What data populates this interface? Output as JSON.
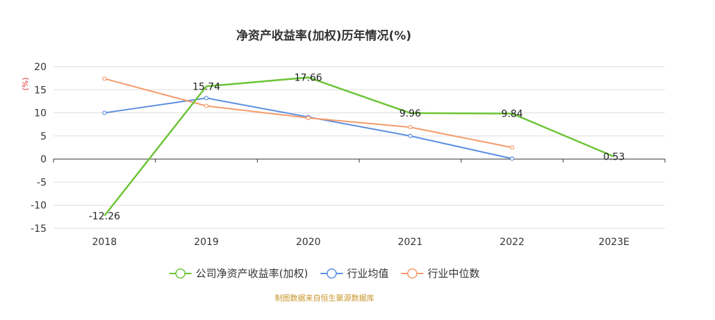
{
  "chart_data": {
    "type": "line",
    "title": "净资产收益率(加权)历年情况(%)",
    "ylabel": "(%)",
    "categories": [
      "2018",
      "2019",
      "2020",
      "2021",
      "2022",
      "2023E"
    ],
    "ylim": [
      -15,
      20
    ],
    "yticks": [
      20,
      15,
      10,
      5,
      0,
      -5,
      -10,
      -15
    ],
    "grid": true,
    "legend_position": "bottom",
    "series": [
      {
        "name": "公司净资产收益率(加权)",
        "color": "#6cc436",
        "values": [
          -12.26,
          15.74,
          17.66,
          9.96,
          9.84,
          0.53
        ],
        "labels": [
          "-12.26",
          "15.74",
          "17.66",
          "9.96",
          "9.84",
          "0.53"
        ]
      },
      {
        "name": "行业均值",
        "color": "#5b8ee0",
        "values": [
          10.0,
          13.2,
          9.1,
          5.0,
          0.1,
          null
        ]
      },
      {
        "name": "行业中位数",
        "color": "#f59a6a",
        "values": [
          17.4,
          11.5,
          8.9,
          6.9,
          2.5,
          null
        ]
      }
    ],
    "source": "制图数据来自恒生聚源数据库"
  }
}
